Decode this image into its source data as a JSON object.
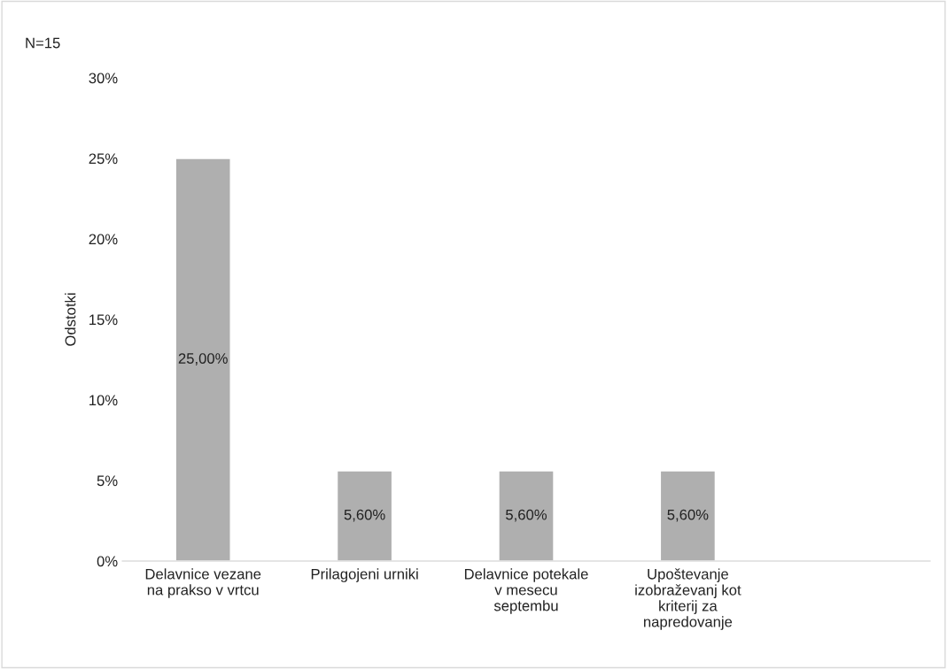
{
  "chart_data": {
    "type": "bar",
    "ylabel": "Odstotki",
    "categories": [
      "Delavnice vezane\nna prakso v vrtcu",
      "Prilagojeni urniki",
      "Delavnice potekale\nv mesecu\nseptembu",
      "Upoštevanje\nizobraževanj kot\nkriterij za\nnapredovanje",
      null
    ],
    "values": [
      25,
      5.6,
      5.6,
      5.6,
      null
    ],
    "value_labels": [
      "25,00%",
      "5,60%",
      "5,60%",
      "5,60%",
      null
    ],
    "color": "#afafaf",
    "ylim": [
      0,
      30
    ],
    "yticks": [
      {
        "value": 0,
        "label": "0%"
      },
      {
        "value": 5,
        "label": "5%"
      },
      {
        "value": 10,
        "label": "10%"
      },
      {
        "value": 15,
        "label": "15%"
      },
      {
        "value": 20,
        "label": "20%"
      },
      {
        "value": 25,
        "label": "25%"
      },
      {
        "value": 30,
        "label": "30%"
      }
    ],
    "annotations": [
      "N=15"
    ],
    "grid": false,
    "legend": false
  }
}
